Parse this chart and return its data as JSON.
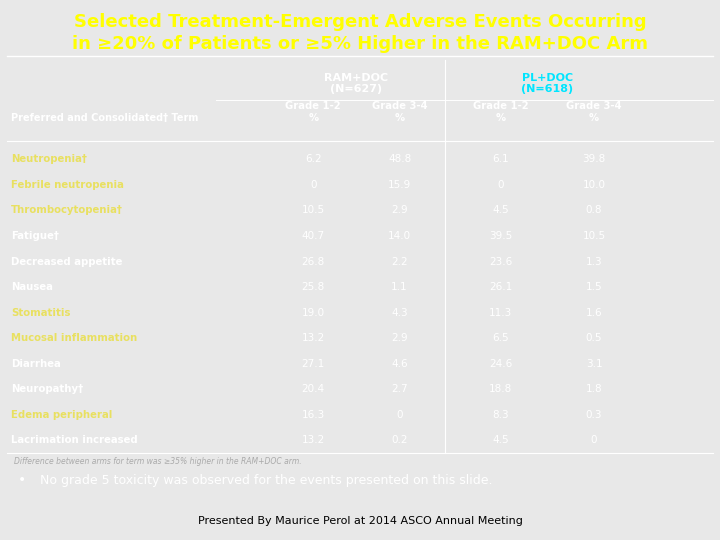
{
  "title_line1": "Selected Treatment-Emergent Adverse Events Occurring",
  "title_line2": "in ≥20% of Patients or ≥5% Higher in the RAM+DOC Arm",
  "bg_color": "#1414a0",
  "title_color": "#ffff00",
  "header1": "RAM+DOC\n(N=627)",
  "header2": "PL+DOC\n(N=618)",
  "header1_color": "#ffffff",
  "header2_color": "#00e5ff",
  "col_headers": [
    "Grade 1-2\n%",
    "Grade 3-4\n%",
    "Grade 1-2\n%",
    "Grade 3-4\n%"
  ],
  "row_label_col_header": "Preferred and Consolidated† Term",
  "rows": [
    {
      "label": "Neutropenia†",
      "yellow": true,
      "ram12": "6.2",
      "ram34": "48.8",
      "pl12": "6.1",
      "pl34": "39.8"
    },
    {
      "label": "Febrile neutropenia",
      "yellow": true,
      "ram12": "0",
      "ram34": "15.9",
      "pl12": "0",
      "pl34": "10.0"
    },
    {
      "label": "Thrombocytopenia†",
      "yellow": true,
      "ram12": "10.5",
      "ram34": "2.9",
      "pl12": "4.5",
      "pl34": "0.8"
    },
    {
      "label": "Fatigue†",
      "yellow": false,
      "ram12": "40.7",
      "ram34": "14.0",
      "pl12": "39.5",
      "pl34": "10.5"
    },
    {
      "label": "Decreased appetite",
      "yellow": false,
      "ram12": "26.8",
      "ram34": "2.2",
      "pl12": "23.6",
      "pl34": "1.3"
    },
    {
      "label": "Nausea",
      "yellow": false,
      "ram12": "25.8",
      "ram34": "1.1",
      "pl12": "26.1",
      "pl34": "1.5"
    },
    {
      "label": "Stomatitis",
      "yellow": true,
      "ram12": "19.0",
      "ram34": "4.3",
      "pl12": "11.3",
      "pl34": "1.6"
    },
    {
      "label": "Mucosal inflammation",
      "yellow": true,
      "ram12": "13.2",
      "ram34": "2.9",
      "pl12": "6.5",
      "pl34": "0.5"
    },
    {
      "label": "Diarrhea",
      "yellow": false,
      "ram12": "27.1",
      "ram34": "4.6",
      "pl12": "24.6",
      "pl34": "3.1"
    },
    {
      "label": "Neuropathy†",
      "yellow": false,
      "ram12": "20.4",
      "ram34": "2.7",
      "pl12": "18.8",
      "pl34": "1.8"
    },
    {
      "label": "Edema peripheral",
      "yellow": true,
      "ram12": "16.3",
      "ram34": "0",
      "pl12": "8.3",
      "pl34": "0.3"
    },
    {
      "label": "Lacrimation increased",
      "yellow": false,
      "ram12": "13.2",
      "ram34": "0.2",
      "pl12": "4.5",
      "pl34": "0"
    }
  ],
  "footnote": "Difference between arms for term was ≥35% higher in the RAM+DOC arm.",
  "bullet_text": "No grade 5 toxicity was observed for the events presented on this slide.",
  "footer_text": "Presented By Maurice Perol at 2014 ASCO Annual Meeting",
  "line_color": "#ffffff",
  "data_color": "#ffffff",
  "yellow_label_color": "#e8e060",
  "white_label_color": "#ffffff",
  "footnote_color": "#aaaaaa"
}
